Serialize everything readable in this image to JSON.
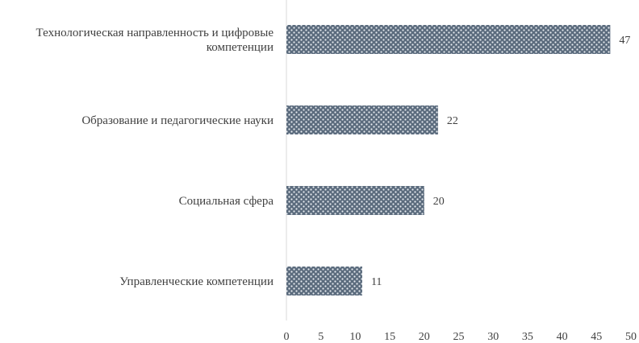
{
  "chart_data": {
    "type": "bar",
    "orientation": "horizontal",
    "categories": [
      [
        "Технологическая направленность и цифровые",
        "компетенции"
      ],
      [
        "Образование и педагогические науки"
      ],
      [
        "Социальная сфера"
      ],
      [
        "Управленческие компетенции"
      ]
    ],
    "values": [
      47,
      22,
      20,
      11
    ],
    "xlim": [
      0,
      50
    ],
    "xticks": [
      0,
      5,
      10,
      15,
      20,
      25,
      30,
      35,
      40,
      45,
      50
    ],
    "grid": false,
    "data_labels": true,
    "bar_color": "#5b6b7d",
    "bar_pattern": "dotted-grid"
  }
}
